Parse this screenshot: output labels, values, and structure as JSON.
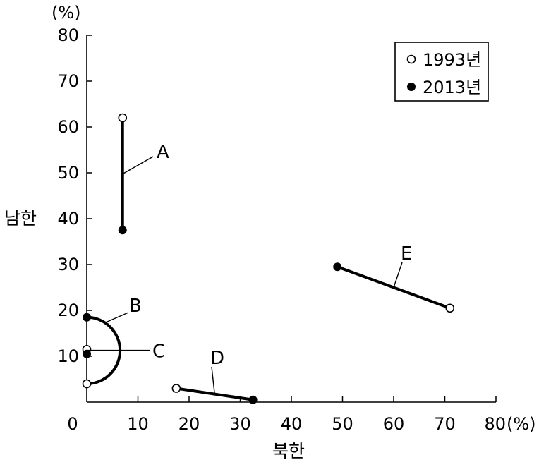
{
  "chart_data": {
    "type": "scatter",
    "xlabel": "북한",
    "ylabel": "남한",
    "x_unit": "(%)",
    "y_unit": "(%)",
    "xlim": [
      0,
      80
    ],
    "ylim": [
      0,
      80
    ],
    "x_ticks": [
      0,
      10,
      20,
      30,
      40,
      50,
      60,
      70,
      80
    ],
    "y_ticks": [
      10,
      20,
      30,
      40,
      50,
      60,
      70,
      80
    ],
    "x_tick_labels": [
      "0",
      "10",
      "20",
      "30",
      "40",
      "50",
      "60",
      "70",
      "80"
    ],
    "y_tick_labels": [
      "10",
      "20",
      "30",
      "40",
      "50",
      "60",
      "70",
      "80"
    ],
    "legend": [
      {
        "label": "1993년",
        "marker": "open-circle"
      },
      {
        "label": "2013년",
        "marker": "filled-circle"
      }
    ],
    "series": [
      {
        "name": "A",
        "x1993": 7,
        "y1993": 62,
        "x2013": 7,
        "y2013": 37.5
      },
      {
        "name": "B",
        "x1993": 0,
        "y1993": 4,
        "x2013": 0,
        "y2013": 18.5
      },
      {
        "name": "C",
        "x1993": 0,
        "y1993": 11.5,
        "x2013": 0,
        "y2013": 10.5
      },
      {
        "name": "D",
        "x1993": 17.5,
        "y1993": 3,
        "x2013": 32.5,
        "y2013": 0.5
      },
      {
        "name": "E",
        "x1993": 71,
        "y1993": 20.5,
        "x2013": 49,
        "y2013": 29.5
      }
    ],
    "grid": false,
    "legend_position": "top-right"
  }
}
